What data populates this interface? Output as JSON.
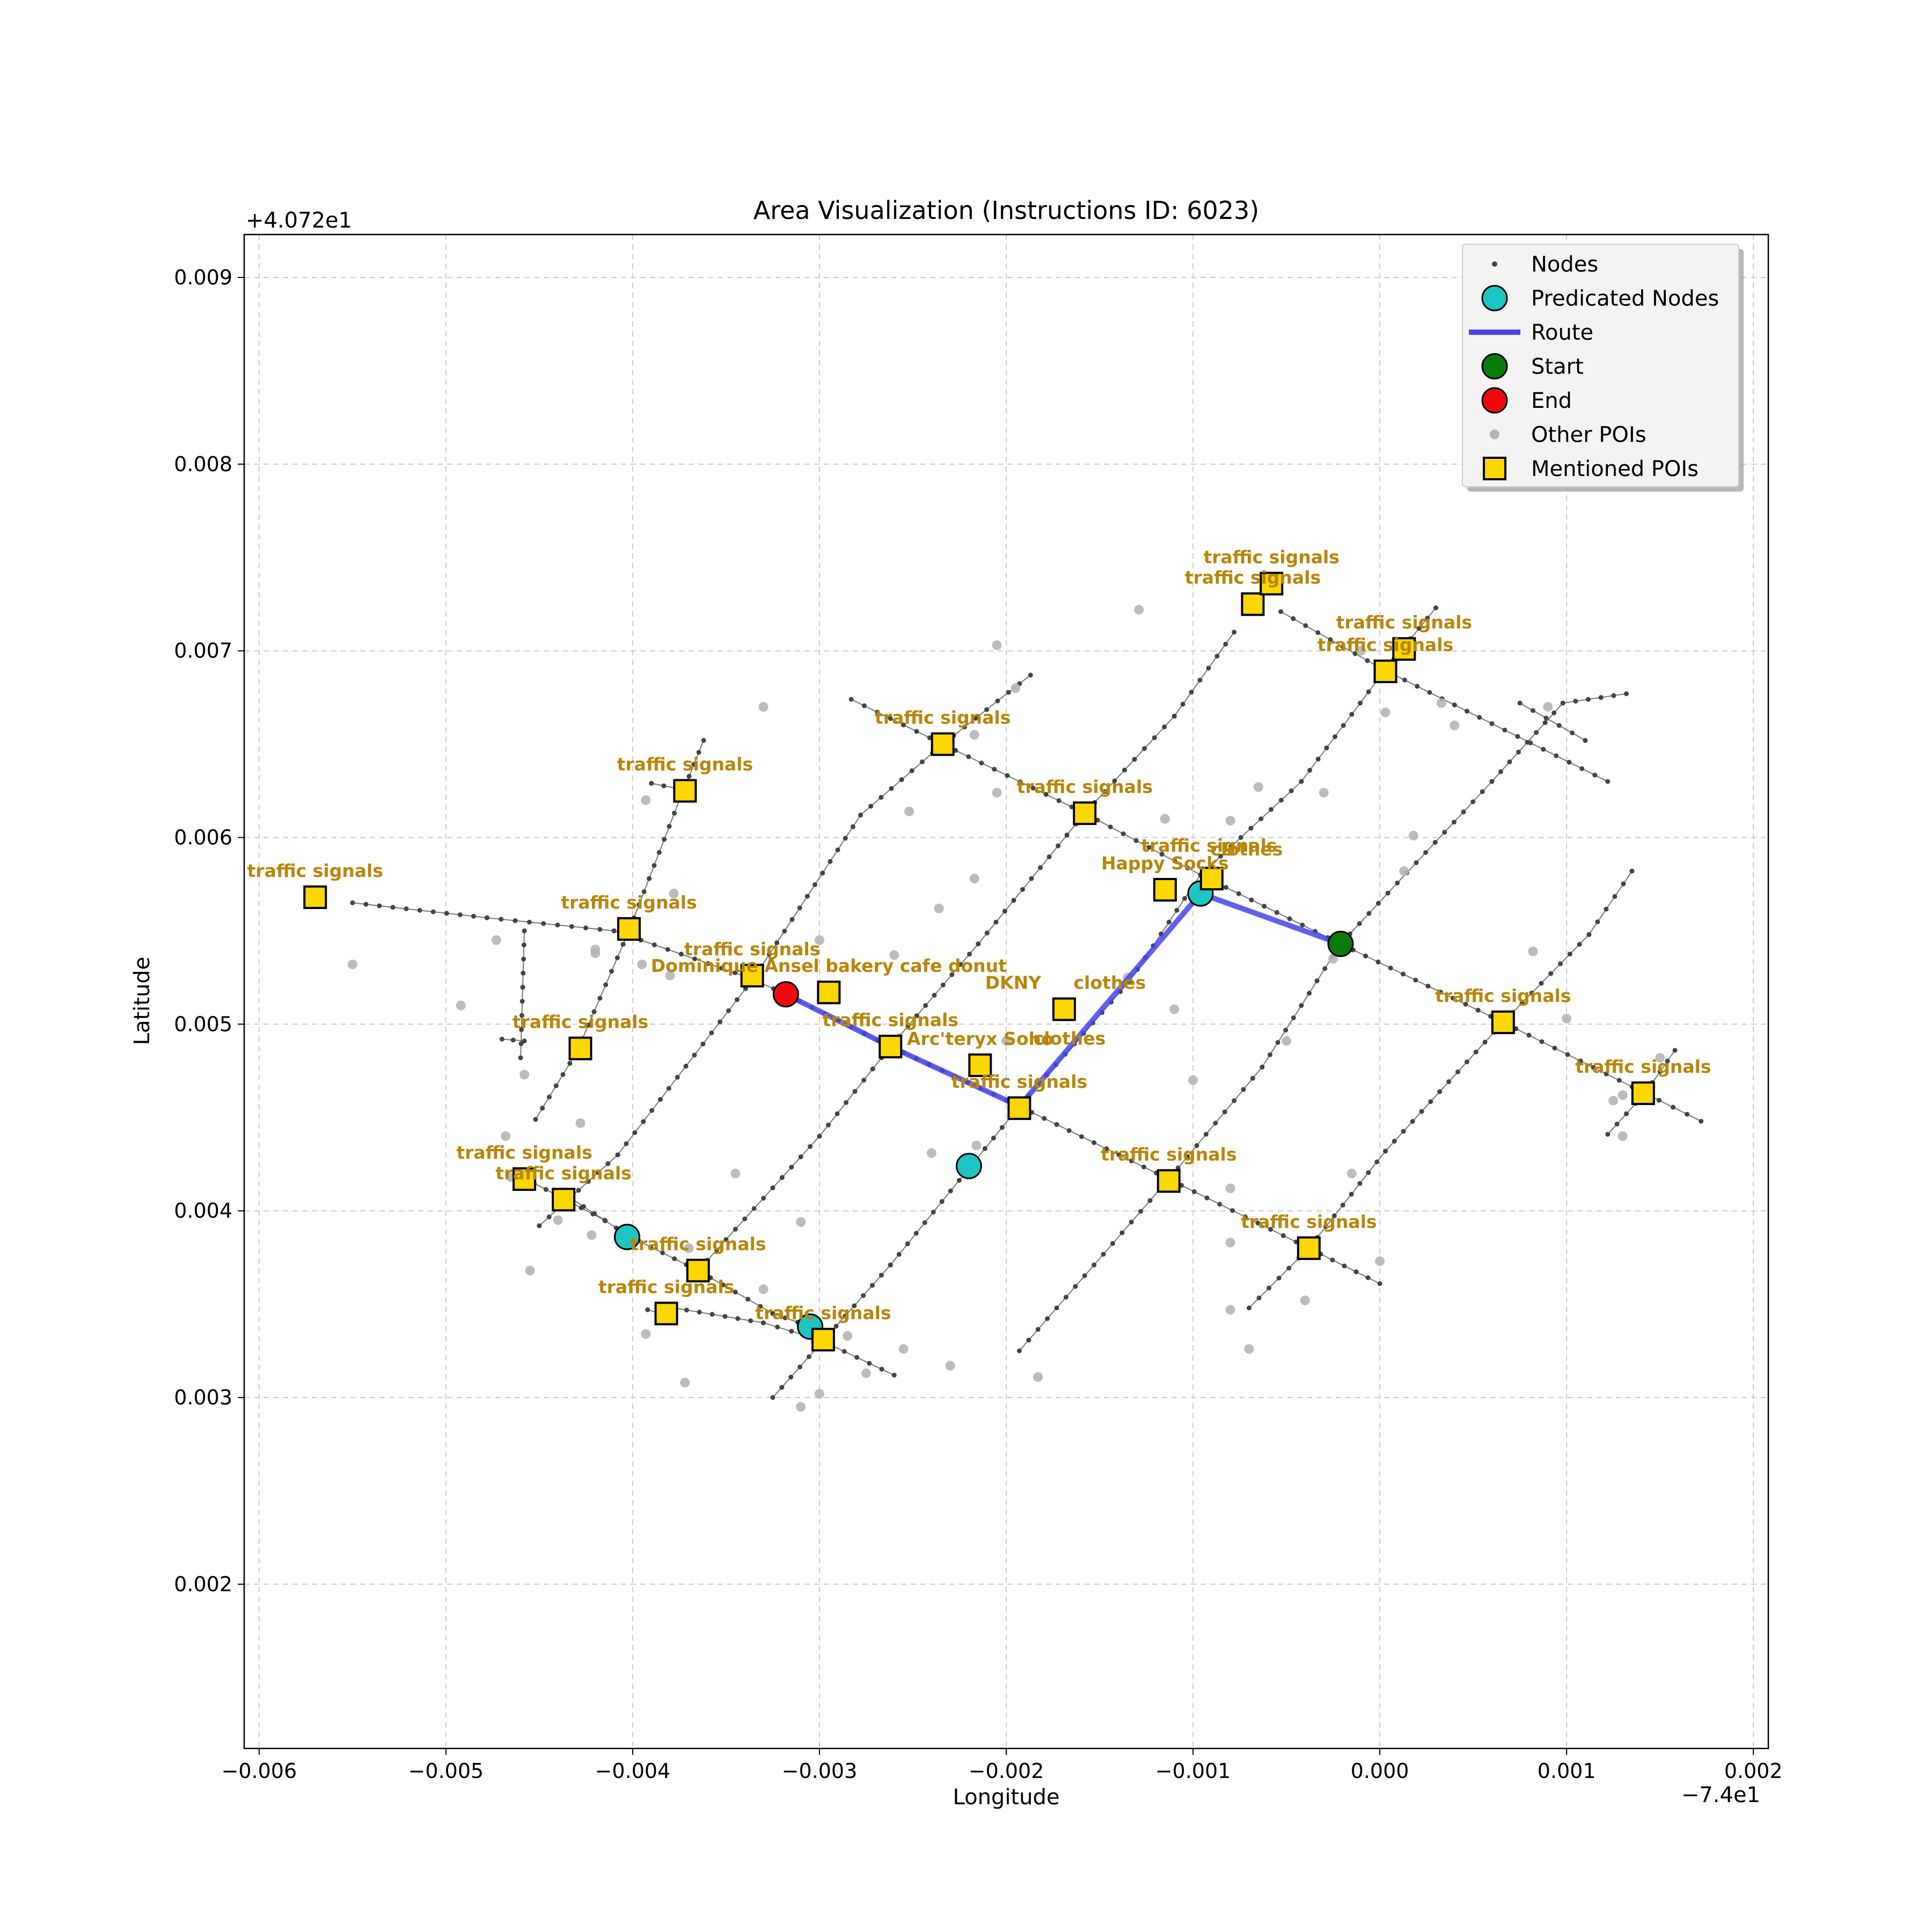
{
  "chart_data": {
    "type": "scatter",
    "title": "Area Visualization (Instructions ID: 6023)",
    "xlabel": "Longitude",
    "ylabel": "Latitude",
    "x_offset_label": "−7.4e1",
    "y_offset_label": "+4.072e1",
    "xlim": [
      -0.00608,
      0.00208
    ],
    "ylim": [
      0.00112,
      0.00923
    ],
    "grid": true,
    "xticks": [
      -0.006,
      -0.005,
      -0.004,
      -0.003,
      -0.002,
      -0.001,
      0.0,
      0.001,
      0.002
    ],
    "xtick_labels": [
      "−0.006",
      "−0.005",
      "−0.004",
      "−0.003",
      "−0.002",
      "−0.001",
      "0.000",
      "0.001",
      "0.002"
    ],
    "yticks": [
      0.002,
      0.003,
      0.004,
      0.005,
      0.006,
      0.007,
      0.008,
      0.009
    ],
    "ytick_labels": [
      "0.002",
      "0.003",
      "0.004",
      "0.005",
      "0.006",
      "0.007",
      "0.008",
      "0.009"
    ],
    "legend": {
      "position": "top-right",
      "entries": [
        {
          "label": "Nodes",
          "marker": "small-dot",
          "color": "#444444"
        },
        {
          "label": "Predicated Nodes",
          "marker": "circle",
          "color": "#1fc4c4"
        },
        {
          "label": "Route",
          "marker": "line",
          "color": "#4545ee"
        },
        {
          "label": "Start",
          "marker": "circle",
          "color": "#0a7a0a"
        },
        {
          "label": "End",
          "marker": "circle",
          "color": "#ee0a0a"
        },
        {
          "label": "Other POIs",
          "marker": "dot",
          "color": "#b5b5b5"
        },
        {
          "label": "Mentioned POIs",
          "marker": "square",
          "color": "#ffd700"
        }
      ]
    },
    "colors": {
      "node": "#444444",
      "edge": "#555555",
      "route": "#4545ee",
      "predicted": "#1fc4c4",
      "start": "#0a7a0a",
      "end": "#ee0a0a",
      "other_poi": "#b5b5b5",
      "mentioned_poi": "#ffd700",
      "poi_label": "#b8860b"
    },
    "streets": [
      [
        [
          -0.0055,
          0.00565
        ],
        [
          -0.00478,
          0.00557
        ],
        [
          -0.0041,
          0.0055
        ],
        [
          -0.00338,
          0.00525
        ],
        [
          -0.00318,
          0.00516
        ],
        [
          -0.00262,
          0.00488
        ],
        [
          -0.00193,
          0.00456
        ],
        [
          -0.00113,
          0.00417
        ],
        [
          -0.00038,
          0.0038
        ],
        [
          0.0,
          0.00361
        ]
      ],
      [
        [
          -0.00283,
          0.00674
        ],
        [
          -0.00234,
          0.0065
        ],
        [
          -0.00158,
          0.00613
        ],
        [
          -0.00096,
          0.0058
        ],
        [
          -0.00021,
          0.00543
        ],
        [
          0.00066,
          0.00501
        ],
        [
          0.00142,
          0.00463
        ],
        [
          0.00172,
          0.00448
        ]
      ],
      [
        [
          -0.00053,
          0.00721
        ],
        [
          0.0,
          0.00691
        ],
        [
          0.0006,
          0.00661
        ],
        [
          0.00122,
          0.0063
        ]
      ],
      [
        [
          0.00075,
          0.00672
        ],
        [
          0.0011,
          0.00652
        ]
      ],
      [
        [
          -0.00438,
          0.0041
        ],
        [
          -0.00403,
          0.00387
        ],
        [
          -0.00365,
          0.00368
        ],
        [
          -0.00325,
          0.00345
        ],
        [
          -0.00305,
          0.00338
        ]
      ],
      [
        [
          -0.00378,
          0.00348
        ],
        [
          -0.0033,
          0.0034
        ],
        [
          -0.003,
          0.00331
        ],
        [
          -0.0026,
          0.00312
        ]
      ],
      [
        [
          -0.0039,
          0.00629
        ],
        [
          -0.0037,
          0.00625
        ]
      ],
      [
        [
          -0.0047,
          0.00492
        ],
        [
          -0.00458,
          0.00491
        ]
      ],
      [
        [
          -0.00392,
          0.00347
        ],
        [
          -0.00378,
          0.00343
        ]
      ],
      [
        [
          -0.00459,
          0.00418
        ],
        [
          -0.00415,
          0.00395
        ]
      ],
      [
        [
          -0.0046,
          0.00482
        ],
        [
          -0.00458,
          0.0055
        ]
      ],
      [
        [
          -0.00452,
          0.00449
        ],
        [
          -0.0043,
          0.00485
        ],
        [
          -0.00402,
          0.0055
        ],
        [
          -0.00375,
          0.0062
        ],
        [
          -0.00362,
          0.00652
        ]
      ],
      [
        [
          -0.0045,
          0.00392
        ],
        [
          -0.00408,
          0.0043
        ],
        [
          -0.00335,
          0.00525
        ],
        [
          -0.00278,
          0.00612
        ],
        [
          -0.00234,
          0.0065
        ],
        [
          -0.00187,
          0.00687
        ]
      ],
      [
        [
          -0.00365,
          0.00368
        ],
        [
          -0.003,
          0.0044
        ],
        [
          -0.00262,
          0.00488
        ],
        [
          -0.00215,
          0.00543
        ],
        [
          -0.00158,
          0.00613
        ],
        [
          -0.0011,
          0.00665
        ],
        [
          -0.00078,
          0.0071
        ]
      ],
      [
        [
          -0.00325,
          0.003
        ],
        [
          -0.00262,
          0.00371
        ],
        [
          -0.00193,
          0.00456
        ],
        [
          -0.00134,
          0.00523
        ],
        [
          -0.00096,
          0.0058
        ],
        [
          -0.00042,
          0.0063
        ],
        [
          3e-05,
          0.0069
        ],
        [
          0.0003,
          0.00723
        ]
      ],
      [
        [
          -0.00193,
          0.00325
        ],
        [
          -0.00113,
          0.00417
        ],
        [
          -0.00063,
          0.00477
        ],
        [
          -0.00021,
          0.00543
        ],
        [
          0.0006,
          0.0063
        ],
        [
          0.00098,
          0.00672
        ],
        [
          0.00132,
          0.00677
        ]
      ],
      [
        [
          -0.0007,
          0.00348
        ],
        [
          -0.00038,
          0.0038
        ],
        [
          3e-05,
          0.00432
        ],
        [
          0.00066,
          0.00501
        ],
        [
          0.00112,
          0.00548
        ],
        [
          0.00135,
          0.00582
        ]
      ],
      [
        [
          0.00122,
          0.00441
        ],
        [
          0.00142,
          0.00463
        ],
        [
          0.00158,
          0.00486
        ]
      ]
    ],
    "route": [
      [
        -0.00021,
        0.00543
      ],
      [
        -0.00096,
        0.0057
      ],
      [
        -0.00193,
        0.00456
      ],
      [
        -0.00262,
        0.00488
      ],
      [
        -0.00318,
        0.00516
      ]
    ],
    "start": [
      -0.00021,
      0.00543
    ],
    "end": [
      -0.00318,
      0.00516
    ],
    "predicted_nodes": [
      [
        -0.00096,
        0.0057
      ],
      [
        -0.0022,
        0.00424
      ],
      [
        -0.00403,
        0.00386
      ],
      [
        -0.00305,
        0.00338
      ]
    ],
    "other_pois": [
      [
        -0.0055,
        0.00532
      ],
      [
        -0.00492,
        0.0051
      ],
      [
        -0.00473,
        0.00545
      ],
      [
        -0.00458,
        0.00473
      ],
      [
        -0.00468,
        0.0044
      ],
      [
        -0.0044,
        0.00395
      ],
      [
        -0.00455,
        0.00368
      ],
      [
        -0.00428,
        0.00447
      ],
      [
        -0.00422,
        0.00387
      ],
      [
        -0.00395,
        0.00532
      ],
      [
        -0.0038,
        0.00526
      ],
      [
        -0.00393,
        0.0062
      ],
      [
        -0.00378,
        0.0057
      ],
      [
        -0.0042,
        0.00538
      ],
      [
        -0.0042,
        0.0054
      ],
      [
        -0.0033,
        0.0067
      ],
      [
        -0.0033,
        0.00358
      ],
      [
        -0.003,
        0.00545
      ],
      [
        -0.003,
        0.00302
      ],
      [
        -0.0031,
        0.00394
      ],
      [
        -0.00285,
        0.00333
      ],
      [
        -0.00275,
        0.00313
      ],
      [
        -0.00255,
        0.00326
      ],
      [
        -0.0026,
        0.00537
      ],
      [
        -0.00252,
        0.00614
      ],
      [
        -0.0024,
        0.00431
      ],
      [
        -0.00236,
        0.00562
      ],
      [
        -0.00217,
        0.00578
      ],
      [
        -0.00217,
        0.00655
      ],
      [
        -0.00205,
        0.00703
      ],
      [
        -0.00195,
        0.0068
      ],
      [
        -0.00205,
        0.00624
      ],
      [
        -0.0023,
        0.00317
      ],
      [
        -0.00183,
        0.00311
      ],
      [
        -0.00216,
        0.00435
      ],
      [
        -0.00135,
        0.00525
      ],
      [
        -0.00129,
        0.00722
      ],
      [
        -0.00115,
        0.0061
      ],
      [
        -0.0011,
        0.00508
      ],
      [
        -0.0011,
        0.00419
      ],
      [
        -0.001,
        0.0047
      ],
      [
        -0.0008,
        0.00412
      ],
      [
        -0.0008,
        0.00609
      ],
      [
        -0.00065,
        0.00627
      ],
      [
        -0.0007,
        0.00326
      ],
      [
        -0.0008,
        0.00347
      ],
      [
        -0.0004,
        0.00352
      ],
      [
        -0.0003,
        0.00624
      ],
      [
        -0.00025,
        0.00535
      ],
      [
        -0.0005,
        0.00491
      ],
      [
        -0.0001,
        0.007
      ],
      [
        3e-05,
        0.00686
      ],
      [
        3e-05,
        0.00667
      ],
      [
        0.00033,
        0.00672
      ],
      [
        0.0004,
        0.0066
      ],
      [
        0.00018,
        0.00601
      ],
      [
        0.00013,
        0.00582
      ],
      [
        0.0001,
        0.00697
      ],
      [
        0.0009,
        0.0067
      ],
      [
        0.00082,
        0.00539
      ],
      [
        0.001,
        0.00503
      ],
      [
        0.0013,
        0.00462
      ],
      [
        0.00125,
        0.00459
      ],
      [
        0.0013,
        0.0044
      ],
      [
        0.0015,
        0.00482
      ],
      [
        0.0,
        0.00373
      ],
      [
        -0.00015,
        0.0042
      ],
      [
        -0.0008,
        0.00383
      ],
      [
        -0.002,
        0.00491
      ],
      [
        -0.00393,
        0.00334
      ],
      [
        -0.00372,
        0.00308
      ],
      [
        -0.0031,
        0.00295
      ],
      [
        -0.00345,
        0.0042
      ],
      [
        -0.00465,
        0.00418
      ],
      [
        -0.0037,
        0.0038
      ]
    ],
    "mentioned_pois": [
      {
        "label": "traffic signals",
        "x": -0.0057,
        "y": 0.00568
      },
      {
        "label": "traffic signals",
        "x": -0.00372,
        "y": 0.00625
      },
      {
        "label": "traffic signals",
        "x": -0.00402,
        "y": 0.00551
      },
      {
        "label": "traffic signals",
        "x": -0.00428,
        "y": 0.00487
      },
      {
        "label": "traffic signals",
        "x": -0.00336,
        "y": 0.00526
      },
      {
        "label": "Dominique Ansel bakery cafe donut",
        "x": -0.00295,
        "y": 0.00517
      },
      {
        "label": "traffic signals",
        "x": -0.00234,
        "y": 0.0065
      },
      {
        "label": "traffic signals",
        "x": -0.00158,
        "y": 0.00613
      },
      {
        "label": "Happy Socks",
        "x": -0.00115,
        "y": 0.00572
      },
      {
        "label": "clothes",
        "x": -0.0009,
        "y": 0.00578,
        "label2": "traffic signals"
      },
      {
        "label": "traffic signals",
        "x": -0.00068,
        "y": 0.00725
      },
      {
        "label": "traffic signals",
        "x": -0.00058,
        "y": 0.00736
      },
      {
        "label": "traffic signals",
        "x": 3e-05,
        "y": 0.00689
      },
      {
        "label": "traffic signals",
        "x": 0.00013,
        "y": 0.00701
      },
      {
        "label": "traffic signals",
        "x": -0.00262,
        "y": 0.00488
      },
      {
        "label": "Arc'teryx Soho",
        "x": -0.00214,
        "y": 0.00478
      },
      {
        "label": "clothes",
        "x": -0.00169,
        "y": 0.00508
      },
      {
        "label": "DKNY",
        "x": -0.00169,
        "y": 0.00508
      },
      {
        "label": "traffic signals",
        "x": -0.00193,
        "y": 0.00455
      },
      {
        "label": "traffic signals",
        "x": -0.00113,
        "y": 0.00416
      },
      {
        "label": "traffic signals",
        "x": 0.00066,
        "y": 0.00501
      },
      {
        "label": "traffic signals",
        "x": 0.00141,
        "y": 0.00463
      },
      {
        "label": "traffic signals",
        "x": -0.00038,
        "y": 0.0038
      },
      {
        "label": "traffic signals",
        "x": -0.00458,
        "y": 0.00417
      },
      {
        "label": "traffic signals",
        "x": -0.00437,
        "y": 0.00406
      },
      {
        "label": "traffic signals",
        "x": -0.00365,
        "y": 0.00368
      },
      {
        "label": "traffic signals",
        "x": -0.00382,
        "y": 0.00345
      },
      {
        "label": "traffic signals",
        "x": -0.00298,
        "y": 0.00331
      }
    ],
    "extra_labels": [
      {
        "label": "clothes",
        "x": -0.00169,
        "y": 0.00477
      }
    ]
  }
}
